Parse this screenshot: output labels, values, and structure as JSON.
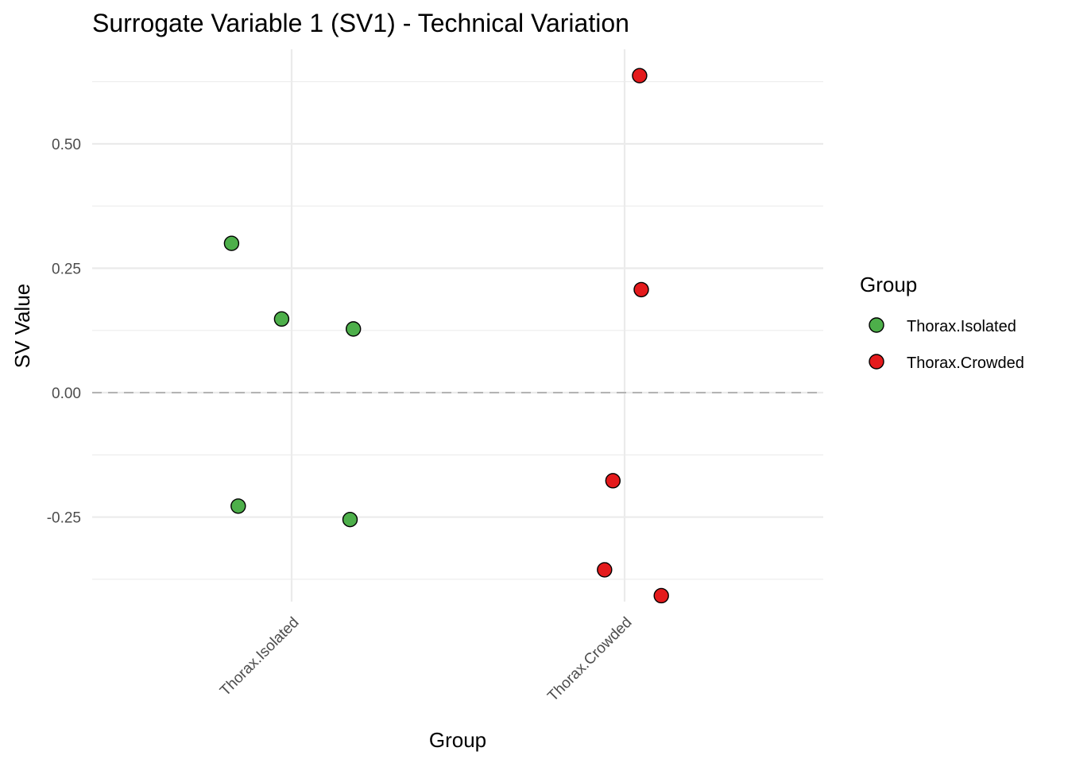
{
  "chart_data": {
    "type": "scatter",
    "title": "Surrogate Variable 1 (SV1) - Technical Variation",
    "xlabel": "Group",
    "ylabel": "SV Value",
    "categories": [
      "Thorax.Isolated",
      "Thorax.Crowded"
    ],
    "ylim": [
      -0.42,
      0.69
    ],
    "yticks": [
      -0.25,
      0.0,
      0.25,
      0.5
    ],
    "ytick_labels": [
      "-0.25",
      "0.00",
      "0.25",
      "0.50"
    ],
    "reference_line": {
      "y": 0.0,
      "style": "dashed"
    },
    "grid": true,
    "legend": {
      "title": "Group",
      "placement": "right",
      "entries": [
        {
          "label": "Thorax.Isolated",
          "color": "#4DAF4A"
        },
        {
          "label": "Thorax.Crowded",
          "color": "#E41A1C"
        }
      ]
    },
    "series": [
      {
        "name": "Thorax.Isolated",
        "color": "#4DAF4A",
        "points": [
          {
            "category": "Thorax.Isolated",
            "jitter": -0.18,
            "y": 0.3
          },
          {
            "category": "Thorax.Isolated",
            "jitter": -0.03,
            "y": 0.148
          },
          {
            "category": "Thorax.Isolated",
            "jitter": 0.185,
            "y": 0.128
          },
          {
            "category": "Thorax.Isolated",
            "jitter": -0.16,
            "y": -0.228
          },
          {
            "category": "Thorax.Isolated",
            "jitter": 0.175,
            "y": -0.255
          }
        ]
      },
      {
        "name": "Thorax.Crowded",
        "color": "#E41A1C",
        "points": [
          {
            "category": "Thorax.Crowded",
            "jitter": 0.045,
            "y": 0.637
          },
          {
            "category": "Thorax.Crowded",
            "jitter": 0.05,
            "y": 0.207
          },
          {
            "category": "Thorax.Crowded",
            "jitter": -0.035,
            "y": -0.177
          },
          {
            "category": "Thorax.Crowded",
            "jitter": -0.06,
            "y": -0.356
          },
          {
            "category": "Thorax.Crowded",
            "jitter": 0.11,
            "y": -0.408
          }
        ]
      }
    ]
  }
}
